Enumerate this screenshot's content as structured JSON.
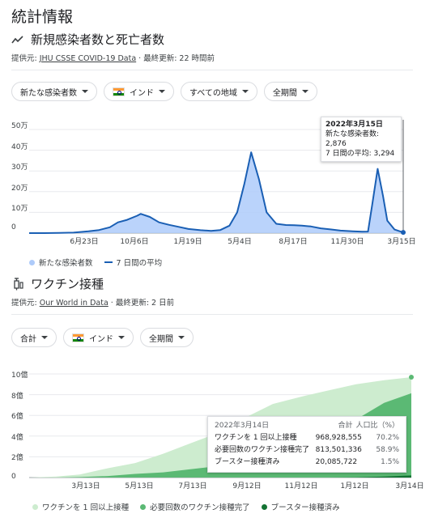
{
  "page_title": "統計情報",
  "cases": {
    "section_title": "新規感染者数と死亡者数",
    "source_prefix": "提供元: ",
    "source_link": "JHU CSSE COVID-19 Data",
    "source_updated": " · 最終更新: 22 時間前",
    "filters": {
      "metric": "新たな感染者数",
      "country": "インド",
      "region": "すべての地域",
      "period": "全期間"
    },
    "tooltip": {
      "date": "2022年3月15日",
      "new_cases": "新たな感染者数: 2,876",
      "avg": "7 日間の平均: 3,294"
    },
    "legend": {
      "new_cases": "新たな感染者数",
      "avg7": "7 日間の平均"
    },
    "colors": {
      "bars": "#aecbfa",
      "line": "#1a5fb4"
    }
  },
  "chart_data": [
    {
      "type": "area",
      "ylim": [
        0,
        500000
      ],
      "yticks": [
        "0",
        "10万",
        "20万",
        "30万",
        "40万",
        "50万"
      ],
      "xticks": [
        "6月23日",
        "10月6日",
        "1月19日",
        "5月4日",
        "8月17日",
        "11月30日",
        "3月15日"
      ],
      "x": [
        "2020-01-30",
        "2020-03-01",
        "2020-04-01",
        "2020-05-01",
        "2020-06-01",
        "2020-06-23",
        "2020-07-15",
        "2020-08-01",
        "2020-08-20",
        "2020-09-10",
        "2020-09-17",
        "2020-10-06",
        "2020-10-25",
        "2020-11-15",
        "2020-12-05",
        "2020-12-25",
        "2021-01-19",
        "2021-02-10",
        "2021-03-01",
        "2021-03-20",
        "2021-04-05",
        "2021-04-20",
        "2021-05-04",
        "2021-05-20",
        "2021-06-05",
        "2021-06-25",
        "2021-07-15",
        "2021-08-01",
        "2021-08-17",
        "2021-09-05",
        "2021-09-25",
        "2021-10-15",
        "2021-11-05",
        "2021-11-30",
        "2021-12-20",
        "2022-01-01",
        "2022-01-10",
        "2022-01-21",
        "2022-02-01",
        "2022-02-10",
        "2022-02-25",
        "2022-03-15"
      ],
      "series": [
        {
          "name": "7 日間の平均",
          "values": [
            0,
            100,
            1000,
            2500,
            8500,
            15000,
            28000,
            52000,
            64000,
            84000,
            93000,
            78000,
            52000,
            40000,
            30000,
            20000,
            14000,
            11000,
            15000,
            36000,
            100000,
            240000,
            390000,
            260000,
            100000,
            45000,
            39000,
            38000,
            36000,
            32000,
            23000,
            18000,
            12000,
            9000,
            7000,
            7500,
            140000,
            310000,
            180000,
            60000,
            17000,
            3294
          ]
        }
      ]
    },
    {
      "type": "area",
      "ylim": [
        0,
        1000000000
      ],
      "yticks": [
        "0",
        "2億",
        "4億",
        "6億",
        "8億",
        "10億"
      ],
      "xticks": [
        "3月13日",
        "5月13日",
        "7月13日",
        "9月12日",
        "11月12日",
        "1月12日",
        "3月14日"
      ],
      "x": [
        "2021-01-16",
        "2021-02-15",
        "2021-03-13",
        "2021-04-13",
        "2021-05-13",
        "2021-06-13",
        "2021-07-13",
        "2021-08-12",
        "2021-09-12",
        "2021-10-12",
        "2021-11-12",
        "2021-12-12",
        "2022-01-12",
        "2022-02-12",
        "2022-03-14"
      ],
      "series": [
        {
          "name": "ワクチンを 1 回以上接種",
          "values": [
            0,
            10000000,
            30000000,
            90000000,
            140000000,
            230000000,
            330000000,
            430000000,
            580000000,
            710000000,
            780000000,
            840000000,
            900000000,
            940000000,
            968928555
          ]
        },
        {
          "name": "必要回数のワクチン接種完了",
          "values": [
            0,
            0,
            5000000,
            15000000,
            35000000,
            50000000,
            80000000,
            110000000,
            180000000,
            260000000,
            340000000,
            430000000,
            560000000,
            720000000,
            813501336
          ]
        },
        {
          "name": "ブースター接種済み",
          "values": [
            0,
            0,
            0,
            0,
            0,
            0,
            0,
            0,
            0,
            0,
            0,
            0,
            2000000,
            10000000,
            20085722
          ]
        }
      ]
    }
  ],
  "vaccine": {
    "section_title": "ワクチン接種",
    "source_prefix": "提供元: ",
    "source_link": "Our World in Data",
    "source_updated": " · 最終更新: 2 日前",
    "filters": {
      "metric": "合計",
      "country": "インド",
      "period": "全期間"
    },
    "tooltip": {
      "date": "2022年3月14日",
      "col_total": "合計",
      "col_ratio": "人口比（%）",
      "rows": [
        {
          "label": "ワクチンを 1 回以上接種",
          "total": "968,928,555",
          "ratio": "70.2%"
        },
        {
          "label": "必要回数のワクチン接種完了",
          "total": "813,501,336",
          "ratio": "58.9%"
        },
        {
          "label": "ブースター接種済み",
          "total": "20,085,722",
          "ratio": "1.5%"
        }
      ]
    },
    "legend": {
      "first": "ワクチンを 1 回以上接種",
      "full": "必要回数のワクチン接種完了",
      "booster": "ブースター接種済み"
    },
    "colors": {
      "first": "#cdeccf",
      "full": "#5bb974",
      "booster": "#137333"
    }
  }
}
